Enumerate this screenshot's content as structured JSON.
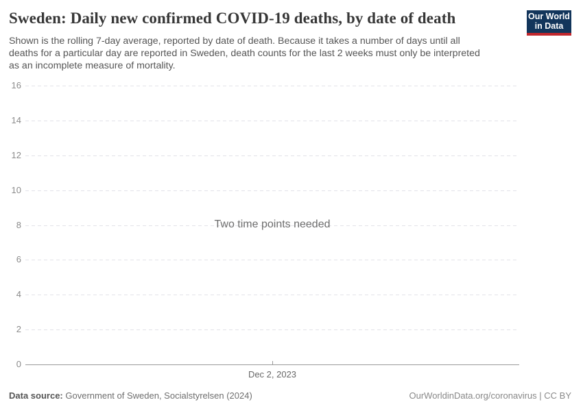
{
  "header": {
    "title": "Sweden: Daily new confirmed COVID-19 deaths, by date of death",
    "subtitle_lines": [
      "Shown is the rolling 7-day average, reported by date of death. Because it takes a number of days until all",
      "deaths for a particular day are reported in Sweden, death counts for the last 2 weeks must only be interpreted",
      "as an incomplete measure of mortality."
    ],
    "logo": {
      "line1": "Our World",
      "line2": "in Data"
    }
  },
  "chart_data": {
    "type": "line",
    "title": "Sweden: Daily new confirmed COVID-19 deaths, by date of death",
    "series": [],
    "x": [],
    "empty_message": "Two time points needed",
    "ylim": [
      0,
      16
    ],
    "yticks": [
      0,
      2,
      4,
      6,
      8,
      10,
      12,
      14,
      16
    ],
    "xticks": [
      {
        "label": "Dec 2, 2023",
        "frac": 0.5
      }
    ],
    "grid": "horizontal-dashed",
    "legend": "none"
  },
  "footer": {
    "datasource_label": "Data source:",
    "datasource_value": "Government of Sweden, Socialstyrelsen (2024)",
    "credit": "OurWorldinData.org/coronavirus | CC BY"
  },
  "colors": {
    "title": "#373737",
    "subtitle": "#555555",
    "gridline": "#e2e2e8",
    "axis_line": "#999999",
    "ytick_label": "#8a8a8a",
    "xtick_label": "#666666",
    "empty_message": "#6d6d6d",
    "logo_background": "#12355b",
    "logo_bar": "#c0272d"
  }
}
